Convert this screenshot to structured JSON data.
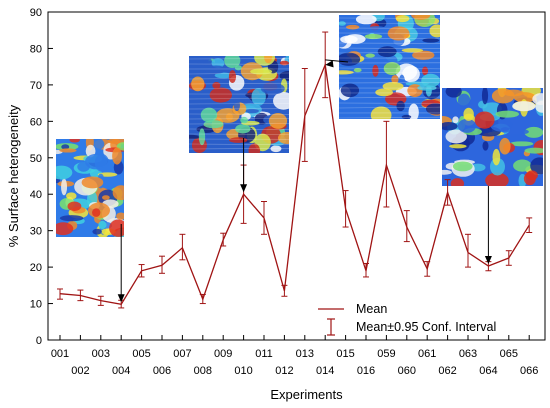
{
  "chart_data": {
    "type": "line",
    "xlabel": "Experiments",
    "ylabel": "% Surface heterogeneity",
    "ylim": [
      0,
      90
    ],
    "yticks": [
      0,
      10,
      20,
      30,
      40,
      50,
      60,
      70,
      80,
      90
    ],
    "grid": false,
    "legend_position": "bottom-right",
    "categories": [
      "001",
      "002",
      "003",
      "004",
      "005",
      "006",
      "007",
      "008",
      "009",
      "010",
      "011",
      "012",
      "013",
      "014",
      "015",
      "016",
      "059",
      "060",
      "061",
      "062",
      "063",
      "064",
      "065",
      "066"
    ],
    "series": [
      {
        "name": "Mean",
        "color": "#a01414",
        "values": [
          12.7,
          12.2,
          10.8,
          9.8,
          19.0,
          20.5,
          25.3,
          11.2,
          27.5,
          40.0,
          33.5,
          13.5,
          61.5,
          75.5,
          36.0,
          19.0,
          48.0,
          31.0,
          19.5,
          40.5,
          24.0,
          20.3,
          22.5,
          31.5
        ],
        "ci_low": [
          11.2,
          10.8,
          9.5,
          8.8,
          17.3,
          18.3,
          22.0,
          10.0,
          25.8,
          32.0,
          29.0,
          12.0,
          49.0,
          66.5,
          31.0,
          17.3,
          36.5,
          27.0,
          17.5,
          37.0,
          20.0,
          19.0,
          20.5,
          29.5
        ],
        "ci_high": [
          14.0,
          13.7,
          12.0,
          10.9,
          20.7,
          23.0,
          29.0,
          12.5,
          29.3,
          48.0,
          38.0,
          15.0,
          74.5,
          84.5,
          41.0,
          21.0,
          60.0,
          35.5,
          21.5,
          44.0,
          29.0,
          21.5,
          24.5,
          33.5
        ]
      }
    ],
    "legend": [
      {
        "label": "Mean",
        "symbol": "line"
      },
      {
        "label": "Mean±0.95 Conf. Interval",
        "symbol": "errorbar"
      }
    ],
    "annotations": [
      {
        "name": "heatmap-inset-004",
        "points_to": "004"
      },
      {
        "name": "heatmap-inset-010",
        "points_to": "010"
      },
      {
        "name": "heatmap-inset-014",
        "points_to": "014"
      },
      {
        "name": "heatmap-inset-064",
        "points_to": "064"
      }
    ]
  }
}
